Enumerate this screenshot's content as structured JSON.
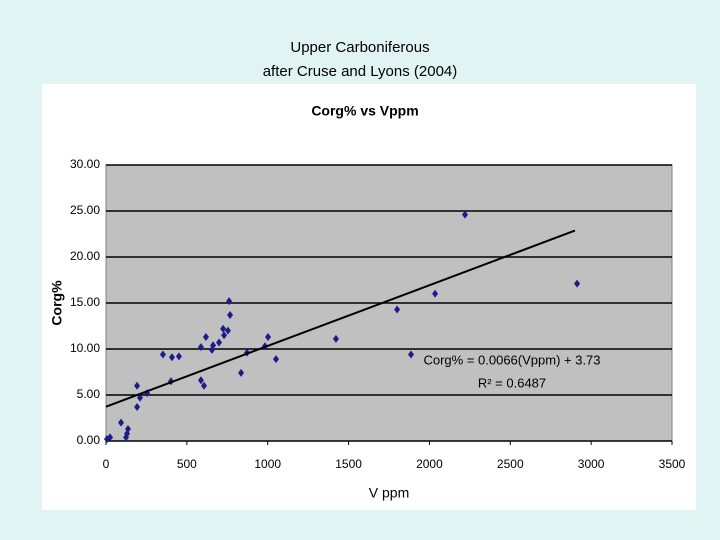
{
  "slide_title": [
    "Upper Carboniferous",
    "after Cruse and Lyons (2004)"
  ],
  "chart_data": {
    "type": "scatter",
    "title": "Corg% vs Vppm",
    "x_label": "V ppm",
    "y_label": "Corg%",
    "series": [
      {
        "name": "Corg%",
        "color": "#1c1c8a",
        "x": [
          6,
          25,
          93,
          124,
          130,
          136,
          192,
          192,
          210,
          254,
          352,
          402,
          408,
          451,
          587,
          587,
          606,
          618,
          655,
          662,
          699,
          724,
          730,
          754,
          761,
          767,
          835,
          872,
          983,
          1002,
          1051,
          1422,
          1800,
          1886,
          2035,
          2220,
          2913
        ],
        "values": [
          0.2,
          0.4,
          2.0,
          0.4,
          0.8,
          1.3,
          6.0,
          3.7,
          4.7,
          5.2,
          9.4,
          6.5,
          9.1,
          9.2,
          10.2,
          6.6,
          6.0,
          11.3,
          9.9,
          10.4,
          10.7,
          12.2,
          11.5,
          12.0,
          15.2,
          13.7,
          7.4,
          9.6,
          10.3,
          11.3,
          8.9,
          11.1,
          14.3,
          9.4,
          16.0,
          24.6,
          17.1
        ]
      }
    ],
    "trendline": {
      "equation": "Corg% = 0.0066(Vppm) + 3.73",
      "r_squared": "R² = 0.6487",
      "slope": 0.0066,
      "intercept": 3.73,
      "x_range": [
        0,
        2900
      ]
    },
    "xlim": [
      0,
      3500
    ],
    "xticks": [
      0,
      500,
      1000,
      1500,
      2000,
      2500,
      3000,
      3500
    ],
    "ylim": [
      0,
      30
    ],
    "yticks": [
      {
        "value": 0,
        "label": "0.00"
      },
      {
        "value": 5,
        "label": "5.00"
      },
      {
        "value": 10,
        "label": "10.00"
      },
      {
        "value": 15,
        "label": "15.00"
      },
      {
        "value": 20,
        "label": "20.00"
      },
      {
        "value": 25,
        "label": "25.00"
      },
      {
        "value": 30,
        "label": "30.00"
      }
    ],
    "grid": true
  }
}
